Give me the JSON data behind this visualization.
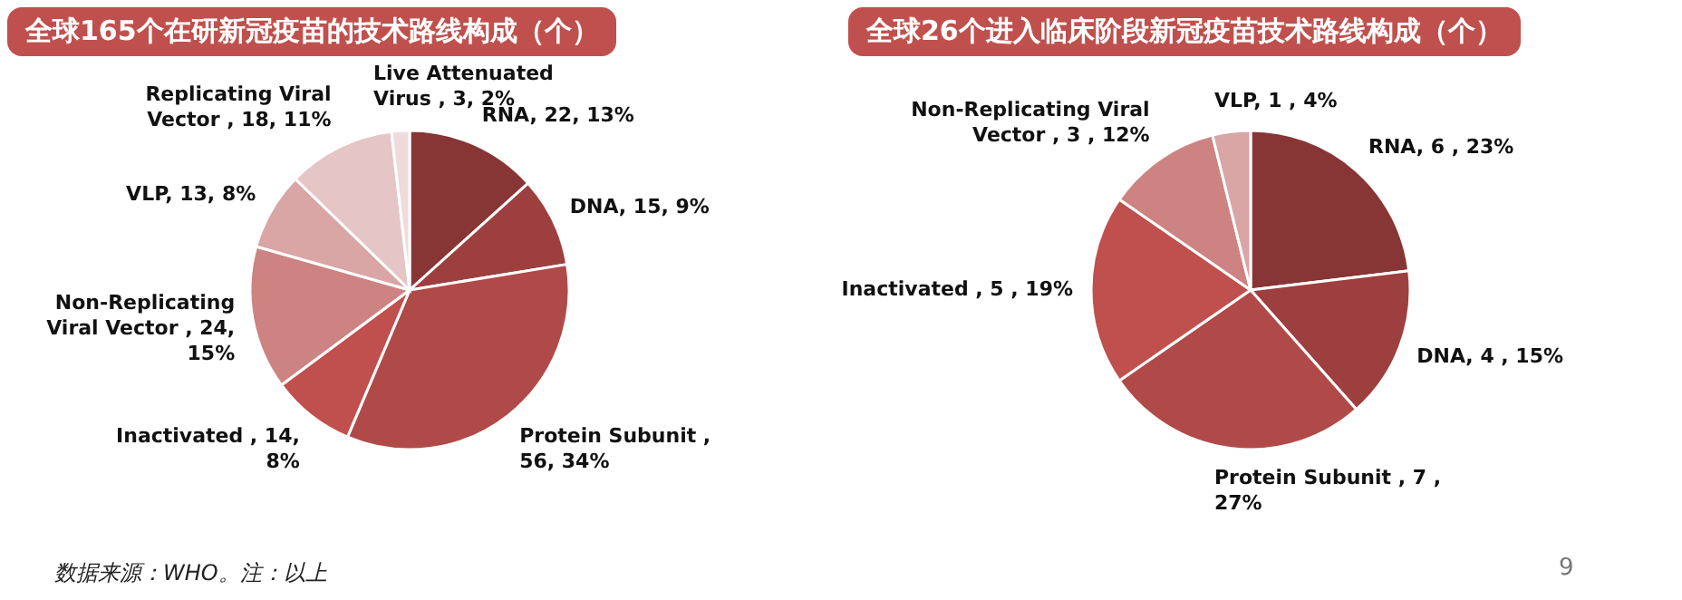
{
  "chart_data": [
    {
      "type": "pie",
      "title": "全球165个在研新冠疫苗的技术路线构成（个）",
      "categories": [
        "RNA",
        "DNA",
        "Protein Subunit",
        "Inactivated",
        "Non-Replicating Viral Vector",
        "VLP",
        "Replicating Viral Vector",
        "Live Attenuated Virus"
      ],
      "values": [
        22,
        15,
        56,
        14,
        24,
        13,
        18,
        3
      ],
      "value_labels": [
        ", 22, 13%",
        ", 15, 9%",
        " , 56, 34%",
        " , 14, 8%",
        " , 24, 15%",
        ", 13, 8%",
        " , 18, 11%",
        " , 3, 2%"
      ],
      "colors": [
        "#883535",
        "#9e3f3f",
        "#b04a48",
        "#c0504d",
        "#cd8381",
        "#d9a5a5",
        "#e5c5c6",
        "#efdbdc"
      ],
      "annotations": [
        "数据来源：WHO。注：以上"
      ]
    },
    {
      "type": "pie",
      "title": "全球26个进入临床阶段新冠疫苗技术路线构成（个）",
      "categories": [
        "RNA",
        "DNA",
        "Protein Subunit",
        "Inactivated",
        "Non-Replicating Viral Vector",
        "VLP"
      ],
      "values": [
        6,
        4,
        7,
        5,
        3,
        1
      ],
      "value_labels": [
        ", 6 , 23%",
        ", 4 , 15%",
        " , 7 , 27%",
        " , 5 , 19%",
        " , 3 , 12%",
        ", 1 , 4%"
      ],
      "colors": [
        "#883535",
        "#9e3f3f",
        "#b04a48",
        "#c0504d",
        "#cd8381",
        "#d9a5a5"
      ],
      "annotations": [
        "9"
      ]
    }
  ]
}
